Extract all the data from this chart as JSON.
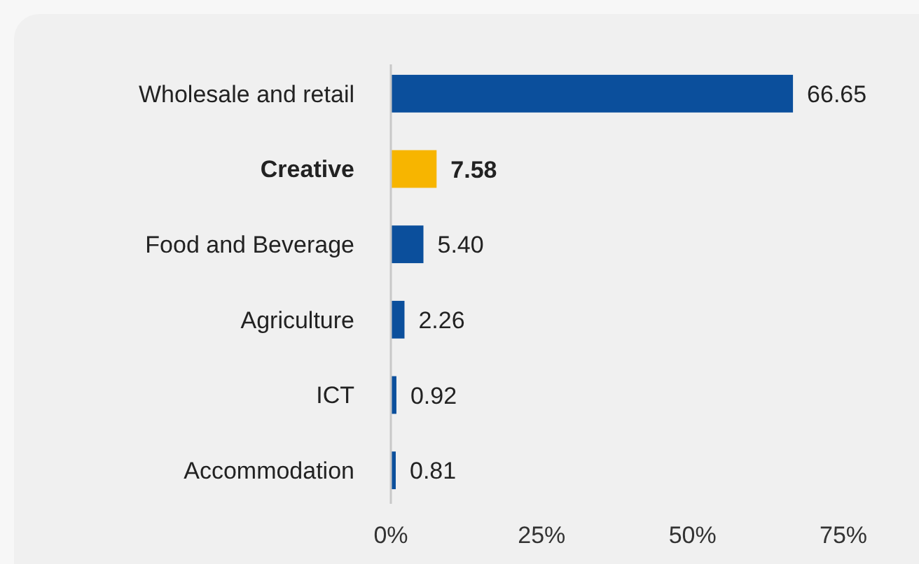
{
  "chart_data": {
    "type": "bar",
    "orientation": "horizontal",
    "categories": [
      "Wholesale and retail",
      "Creative",
      "Food and Beverage",
      "Agriculture",
      "ICT",
      "Accommodation"
    ],
    "values": [
      66.65,
      7.58,
      5.4,
      2.26,
      0.92,
      0.81
    ],
    "value_labels": [
      "66.65",
      "7.58",
      "5.40",
      "2.26",
      "0.92",
      "0.81"
    ],
    "colors": [
      "#0b4f9c",
      "#f7b500",
      "#0b4f9c",
      "#0b4f9c",
      "#0b4f9c",
      "#0b4f9c"
    ],
    "xlim": [
      0,
      75
    ],
    "xticks": [
      {
        "value": 0,
        "label": "0%"
      },
      {
        "value": 25,
        "label": "25%"
      },
      {
        "value": 50,
        "label": "50%"
      },
      {
        "value": 75,
        "label": "75%"
      }
    ],
    "grid": false
  }
}
